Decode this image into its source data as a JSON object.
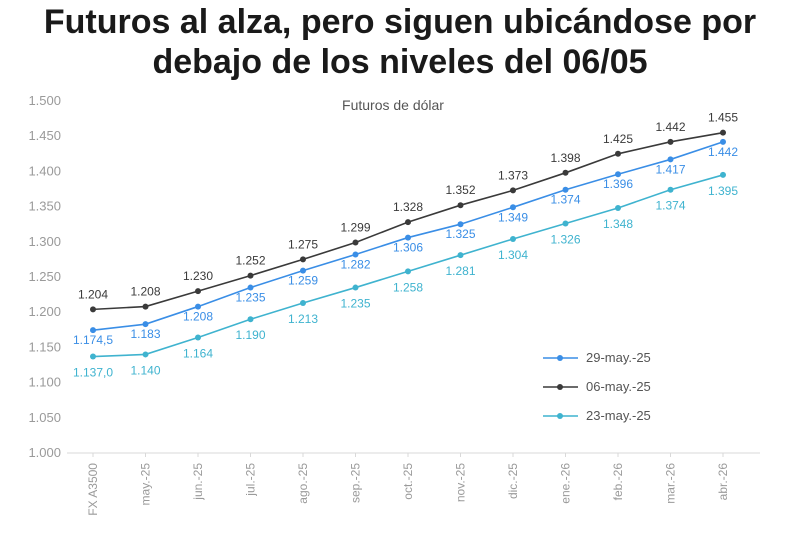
{
  "headline": {
    "line1": "Futuros al alza, pero siguen ubicándose por",
    "line2": "debajo de los niveles del 06/05"
  },
  "chart_data": {
    "type": "line",
    "title": "Futuros de dólar",
    "xlabel": "",
    "ylabel": "",
    "categories": [
      "FX A3500",
      "may.-25",
      "jun.-25",
      "jul.-25",
      "ago.-25",
      "sep.-25",
      "oct.-25",
      "nov.-25",
      "dic.-25",
      "ene.-26",
      "feb.-26",
      "mar.-26",
      "abr.-26"
    ],
    "ylim": [
      1000,
      1500
    ],
    "yticks": [
      1000,
      1050,
      1100,
      1150,
      1200,
      1250,
      1300,
      1350,
      1400,
      1450,
      1500
    ],
    "ytick_labels": [
      "1.000",
      "1.050",
      "1.100",
      "1.150",
      "1.200",
      "1.250",
      "1.300",
      "1.350",
      "1.400",
      "1.450",
      "1.500"
    ],
    "grid": false,
    "legend_position": "bottom-right",
    "series": [
      {
        "name": "29-may.-25",
        "color": "#3a8ee6",
        "values": [
          1174.5,
          1183,
          1208,
          1235,
          1259,
          1282,
          1306,
          1325,
          1349,
          1374,
          1396,
          1417,
          1442
        ],
        "labels": [
          "1.174,5",
          "1.183",
          "1.208",
          "1.235",
          "1.259",
          "1.282",
          "1.306",
          "1.325",
          "1.349",
          "1.374",
          "1.396",
          "1.417",
          "1.442"
        ]
      },
      {
        "name": "06-may.-25",
        "color": "#3a3a3a",
        "values": [
          1204,
          1208,
          1230,
          1252,
          1275,
          1299,
          1328,
          1352,
          1373,
          1398,
          1425,
          1442,
          1455
        ],
        "labels": [
          "1.204",
          "1.208",
          "1.230",
          "1.252",
          "1.275",
          "1.299",
          "1.328",
          "1.352",
          "1.373",
          "1.398",
          "1.425",
          "1.442",
          "1.455"
        ]
      },
      {
        "name": "23-may.-25",
        "color": "#3fb3cf",
        "values": [
          1137.0,
          1140,
          1164,
          1190,
          1213,
          1235,
          1258,
          1281,
          1304,
          1326,
          1348,
          1374,
          1395
        ],
        "labels": [
          "1.137,0",
          "1.140",
          "1.164",
          "1.190",
          "1.213",
          "1.235",
          "1.258",
          "1.281",
          "1.304",
          "1.326",
          "1.348",
          "1.374",
          "1.395"
        ]
      }
    ]
  }
}
